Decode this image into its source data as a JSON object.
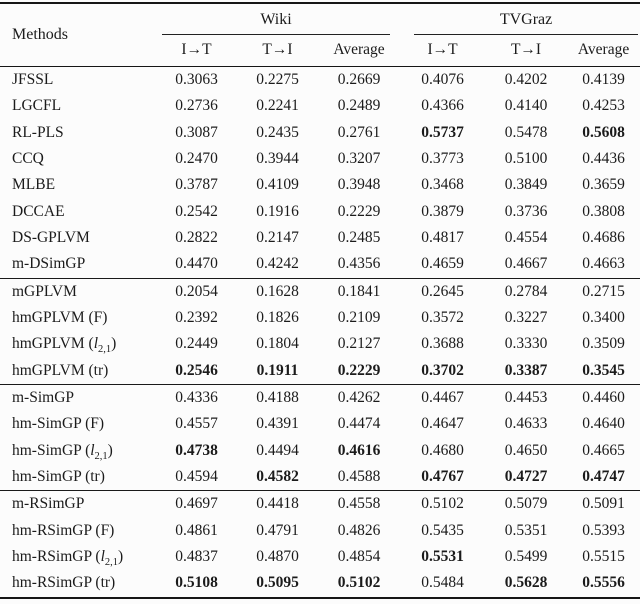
{
  "page": {
    "background": "#fcfcfc",
    "text_color": "#1b1b1b",
    "rule_color": "#161616"
  },
  "table": {
    "methods_header": "Methods",
    "groups": [
      {
        "label": "Wiki",
        "columns": [
          "I→T",
          "T→I",
          "Average"
        ]
      },
      {
        "label": "TVGraz",
        "columns": [
          "I→T",
          "T→I",
          "Average"
        ]
      }
    ],
    "sections": [
      {
        "rows": [
          {
            "method": "JFSSL",
            "values": [
              "0.3063",
              "0.2275",
              "0.2669",
              "0.4076",
              "0.4202",
              "0.4139"
            ],
            "bold": [
              0,
              0,
              0,
              0,
              0,
              0
            ]
          },
          {
            "method": "LGCFL",
            "values": [
              "0.2736",
              "0.2241",
              "0.2489",
              "0.4366",
              "0.4140",
              "0.4253"
            ],
            "bold": [
              0,
              0,
              0,
              0,
              0,
              0
            ]
          },
          {
            "method": "RL-PLS",
            "values": [
              "0.3087",
              "0.2435",
              "0.2761",
              "0.5737",
              "0.5478",
              "0.5608"
            ],
            "bold": [
              0,
              0,
              0,
              1,
              0,
              1
            ]
          },
          {
            "method": "CCQ",
            "values": [
              "0.2470",
              "0.3944",
              "0.3207",
              "0.3773",
              "0.5100",
              "0.4436"
            ],
            "bold": [
              0,
              0,
              0,
              0,
              0,
              0
            ]
          },
          {
            "method": "MLBE",
            "values": [
              "0.3787",
              "0.4109",
              "0.3948",
              "0.3468",
              "0.3849",
              "0.3659"
            ],
            "bold": [
              0,
              0,
              0,
              0,
              0,
              0
            ]
          },
          {
            "method": "DCCAE",
            "values": [
              "0.2542",
              "0.1916",
              "0.2229",
              "0.3879",
              "0.3736",
              "0.3808"
            ],
            "bold": [
              0,
              0,
              0,
              0,
              0,
              0
            ]
          },
          {
            "method": "DS-GPLVM",
            "values": [
              "0.2822",
              "0.2147",
              "0.2485",
              "0.4817",
              "0.4554",
              "0.4686"
            ],
            "bold": [
              0,
              0,
              0,
              0,
              0,
              0
            ]
          },
          {
            "method": "m-DSimGP",
            "values": [
              "0.4470",
              "0.4242",
              "0.4356",
              "0.4659",
              "0.4667",
              "0.4663"
            ],
            "bold": [
              0,
              0,
              0,
              0,
              0,
              0
            ]
          }
        ]
      },
      {
        "rows": [
          {
            "method": "mGPLVM",
            "values": [
              "0.2054",
              "0.1628",
              "0.1841",
              "0.2645",
              "0.2784",
              "0.2715"
            ],
            "bold": [
              0,
              0,
              0,
              0,
              0,
              0
            ]
          },
          {
            "method": "hmGPLVM (F)",
            "values": [
              "0.2392",
              "0.1826",
              "0.2109",
              "0.3572",
              "0.3227",
              "0.3400"
            ],
            "bold": [
              0,
              0,
              0,
              0,
              0,
              0
            ]
          },
          {
            "method": "hmGPLVM (*l*_{2,1})",
            "values": [
              "0.2449",
              "0.1804",
              "0.2127",
              "0.3688",
              "0.3330",
              "0.3509"
            ],
            "bold": [
              0,
              0,
              0,
              0,
              0,
              0
            ]
          },
          {
            "method": "hmGPLVM (tr)",
            "values": [
              "0.2546",
              "0.1911",
              "0.2229",
              "0.3702",
              "0.3387",
              "0.3545"
            ],
            "bold": [
              1,
              1,
              1,
              1,
              1,
              1
            ]
          }
        ]
      },
      {
        "rows": [
          {
            "method": "m-SimGP",
            "values": [
              "0.4336",
              "0.4188",
              "0.4262",
              "0.4467",
              "0.4453",
              "0.4460"
            ],
            "bold": [
              0,
              0,
              0,
              0,
              0,
              0
            ]
          },
          {
            "method": "hm-SimGP (F)",
            "values": [
              "0.4557",
              "0.4391",
              "0.4474",
              "0.4647",
              "0.4633",
              "0.4640"
            ],
            "bold": [
              0,
              0,
              0,
              0,
              0,
              0
            ]
          },
          {
            "method": "hm-SimGP (*l*_{2,1})",
            "values": [
              "0.4738",
              "0.4494",
              "0.4616",
              "0.4680",
              "0.4650",
              "0.4665"
            ],
            "bold": [
              1,
              0,
              1,
              0,
              0,
              0
            ]
          },
          {
            "method": "hm-SimGP (tr)",
            "values": [
              "0.4594",
              "0.4582",
              "0.4588",
              "0.4767",
              "0.4727",
              "0.4747"
            ],
            "bold": [
              0,
              1,
              0,
              1,
              1,
              1
            ]
          }
        ]
      },
      {
        "rows": [
          {
            "method": "m-RSimGP",
            "values": [
              "0.4697",
              "0.4418",
              "0.4558",
              "0.5102",
              "0.5079",
              "0.5091"
            ],
            "bold": [
              0,
              0,
              0,
              0,
              0,
              0
            ]
          },
          {
            "method": "hm-RSimGP (F)",
            "values": [
              "0.4861",
              "0.4791",
              "0.4826",
              "0.5435",
              "0.5351",
              "0.5393"
            ],
            "bold": [
              0,
              0,
              0,
              0,
              0,
              0
            ]
          },
          {
            "method": "hm-RSimGP (*l*_{2,1})",
            "values": [
              "0.4837",
              "0.4870",
              "0.4854",
              "0.5531",
              "0.5499",
              "0.5515"
            ],
            "bold": [
              0,
              0,
              0,
              1,
              0,
              0
            ]
          },
          {
            "method": "hm-RSimGP (tr)",
            "values": [
              "0.5108",
              "0.5095",
              "0.5102",
              "0.5484",
              "0.5628",
              "0.5556"
            ],
            "bold": [
              1,
              1,
              1,
              0,
              1,
              1
            ]
          }
        ]
      }
    ]
  }
}
